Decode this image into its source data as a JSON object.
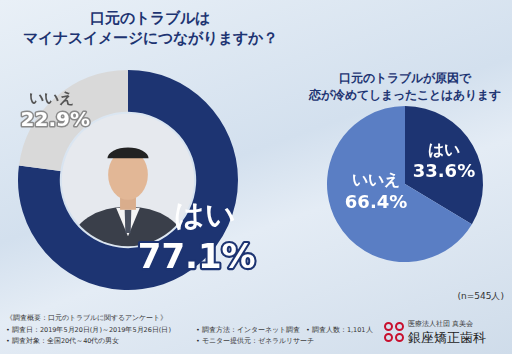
{
  "chart_data": [
    {
      "type": "doughnut",
      "title": [
        "口元のトラブルは",
        "マイナスイメージにつながりますか？"
      ],
      "categories": [
        "はい",
        "いいえ"
      ],
      "values": [
        77.1,
        22.9
      ],
      "value_labels": [
        "77.1%",
        "22.9%"
      ],
      "colors": [
        "#1d3472",
        "#d9d9d9"
      ],
      "data_labels": true
    },
    {
      "type": "pie",
      "title": [
        "口元のトラブルが原因で",
        "恋が冷めてしまったことはありますか？"
      ],
      "categories": [
        "はい",
        "いいえ"
      ],
      "values": [
        33.6,
        66.4
      ],
      "value_labels": [
        "33.6%",
        "66.4%"
      ],
      "colors": [
        "#1d3472",
        "#5a7ec4"
      ],
      "data_labels": true
    }
  ],
  "sample_size": "(n=545人)",
  "survey": {
    "heading": "《調査概要：口元のトラブルに関するアンケート》",
    "items": [
      "• 調査日：2019年5月20日(月)～2019年5月26日(日)",
      "• 調査方法：インターネット調査",
      "• 調査人数：1,101人",
      "• 調査対象：全国20代～40代の男女",
      "• モニター提供元：ゼネラルリサーチ"
    ]
  },
  "logo": {
    "organization": "医療法人社団 真美会",
    "name": "銀座矯正歯科"
  }
}
